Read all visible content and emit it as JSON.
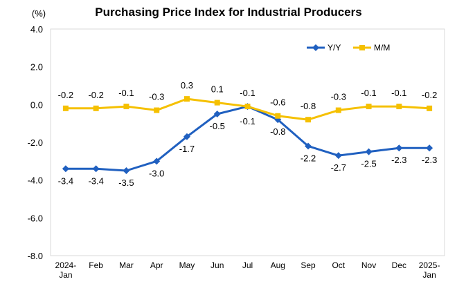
{
  "chart_data": {
    "type": "line",
    "title": "Purchasing Price Index for Industrial Producers",
    "unit_label": "(%)",
    "categories": [
      [
        "2024-",
        "Jan"
      ],
      [
        "Feb"
      ],
      [
        "Mar"
      ],
      [
        "Apr"
      ],
      [
        "May"
      ],
      [
        "Jun"
      ],
      [
        "Jul"
      ],
      [
        "Aug"
      ],
      [
        "Sep"
      ],
      [
        "Oct"
      ],
      [
        "Nov"
      ],
      [
        "Dec"
      ],
      [
        "2025-",
        "Jan"
      ]
    ],
    "ylim": [
      -8.0,
      4.0
    ],
    "yticks": [
      "4.0",
      "2.0",
      "0.0",
      "-2.0",
      "-4.0",
      "-6.0",
      "-8.0"
    ],
    "legend_position": "top-right",
    "series": [
      {
        "name": "Y/Y",
        "color": "#2060C0",
        "marker": "diamond",
        "values": [
          -3.4,
          -3.4,
          -3.5,
          -3.0,
          -1.7,
          -0.5,
          -0.1,
          -0.8,
          -2.2,
          -2.7,
          -2.5,
          -2.3,
          -2.3
        ],
        "labels": [
          "-3.4",
          "-3.4",
          "-3.5",
          "-3.0",
          "-1.7",
          "-0.5",
          "-0.1",
          "-0.8",
          "-2.2",
          "-2.7",
          "-2.5",
          "-2.3",
          "-2.3"
        ]
      },
      {
        "name": "M/M",
        "color": "#F5C000",
        "marker": "square",
        "values": [
          -0.2,
          -0.2,
          -0.1,
          -0.3,
          0.3,
          0.1,
          -0.1,
          -0.6,
          -0.8,
          -0.3,
          -0.1,
          -0.1,
          -0.2
        ],
        "labels": [
          "-0.2",
          "-0.2",
          "-0.1",
          "-0.3",
          "0.3",
          "0.1",
          "-0.1",
          "-0.6",
          "-0.8",
          "-0.3",
          "-0.1",
          "-0.1",
          "-0.2"
        ]
      }
    ]
  }
}
